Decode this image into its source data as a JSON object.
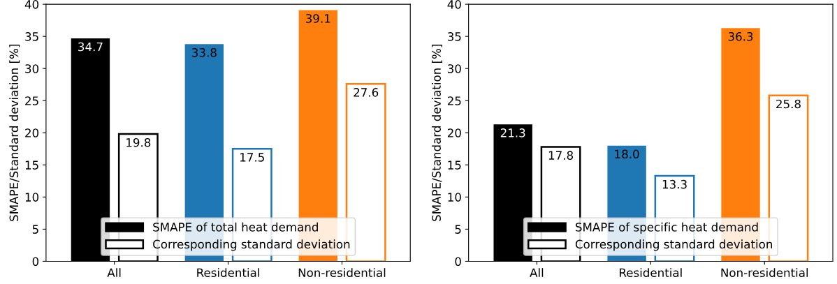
{
  "chart_data": [
    {
      "type": "bar",
      "ylabel": "SMAPE/Standard deviation [%]",
      "categories": [
        "All",
        "Residential",
        "Non-residential"
      ],
      "ylim": [
        0,
        40
      ],
      "yticks": [
        0,
        5,
        10,
        15,
        20,
        25,
        30,
        35,
        40
      ],
      "data_labels": true,
      "legend": "bottom",
      "grid": false,
      "series": [
        {
          "name": "SMAPE of total heat demand",
          "colors": [
            "#000000",
            "#1f77b4",
            "#ff7f0e"
          ],
          "values": [
            34.7,
            33.8,
            39.1
          ]
        },
        {
          "name": "Corresponding standard deviation",
          "color": "#ffffff",
          "colors": [
            "#000000",
            "#1f77b4",
            "#ff7f0e"
          ],
          "values": [
            19.8,
            17.5,
            27.6
          ]
        }
      ]
    },
    {
      "type": "bar",
      "ylabel": "SMAPE/Standard deviation [%]",
      "categories": [
        "All",
        "Residential",
        "Non-residential"
      ],
      "ylim": [
        0,
        40
      ],
      "yticks": [
        0,
        5,
        10,
        15,
        20,
        25,
        30,
        35,
        40
      ],
      "data_labels": true,
      "legend": "bottom",
      "grid": false,
      "series": [
        {
          "name": "SMAPE of specific heat demand",
          "colors": [
            "#000000",
            "#1f77b4",
            "#ff7f0e"
          ],
          "values": [
            21.3,
            18.0,
            36.3
          ],
          "value_labels": [
            "21.3",
            "18.0",
            "36.3"
          ]
        },
        {
          "name": "Corresponding standard deviation",
          "color": "#ffffff",
          "colors": [
            "#000000",
            "#1f77b4",
            "#ff7f0e"
          ],
          "values": [
            17.8,
            13.3,
            25.8
          ]
        }
      ]
    }
  ]
}
